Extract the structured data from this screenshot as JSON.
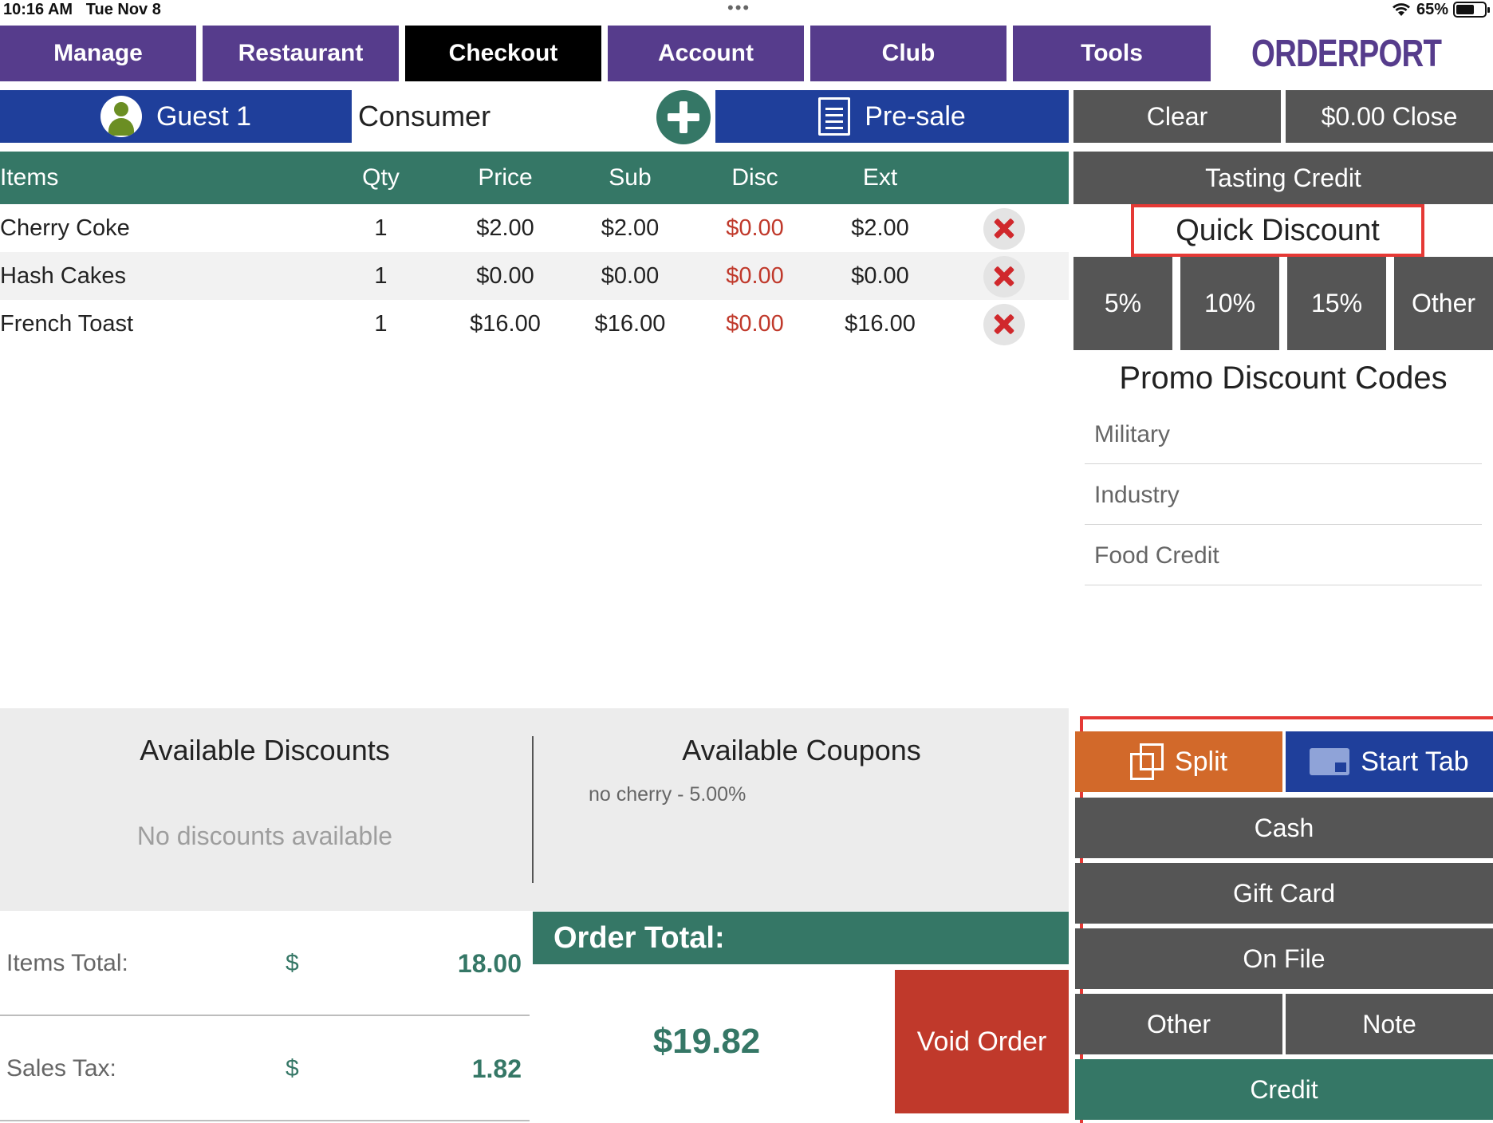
{
  "status_bar": {
    "time": "10:16 AM",
    "date": "Tue Nov 8",
    "dots": "•••",
    "battery": "65%",
    "battery_level": 0.65
  },
  "nav": {
    "tabs": [
      {
        "label": "Manage",
        "active": false
      },
      {
        "label": "Restaurant",
        "active": false
      },
      {
        "label": "Checkout",
        "active": true
      },
      {
        "label": "Account",
        "active": false
      },
      {
        "label": "Club",
        "active": false
      },
      {
        "label": "Tools",
        "active": false
      }
    ]
  },
  "brand": {
    "name": "ORDERPORT",
    "primary_color": "#563c8c",
    "accent_color": "#6b8e23"
  },
  "customer": {
    "guest_label": "Guest 1",
    "type": "Consumer",
    "presale_label": "Pre-sale"
  },
  "actions": {
    "clear": "Clear",
    "close": "$0.00 Close",
    "tasting_credit": "Tasting Credit"
  },
  "table": {
    "columns": [
      "Items",
      "Qty",
      "Price",
      "Sub",
      "Disc",
      "Ext"
    ],
    "rows": [
      {
        "item": "Cherry Coke",
        "qty": "1",
        "price": "$2.00",
        "sub": "$2.00",
        "disc": "$0.00",
        "ext": "$2.00"
      },
      {
        "item": "Hash Cakes",
        "qty": "1",
        "price": "$0.00",
        "sub": "$0.00",
        "disc": "$0.00",
        "ext": "$0.00"
      },
      {
        "item": "French Toast",
        "qty": "1",
        "price": "$16.00",
        "sub": "$16.00",
        "disc": "$0.00",
        "ext": "$16.00"
      }
    ]
  },
  "quick_discount": {
    "title": "Quick Discount",
    "options": [
      "5%",
      "10%",
      "15%",
      "Other"
    ]
  },
  "promo": {
    "title": "Promo Discount Codes",
    "codes": [
      "Military",
      "Industry",
      "Food Credit"
    ]
  },
  "available_discounts": {
    "title": "Available Discounts",
    "empty_text": "No discounts available"
  },
  "available_coupons": {
    "title": "Available Coupons",
    "items": [
      "no cherry - 5.00%"
    ]
  },
  "totals": {
    "items_label": "Items Total:",
    "items_currency": "$",
    "items_value": "18.00",
    "tax_label": "Sales Tax:",
    "tax_currency": "$",
    "tax_value": "1.82"
  },
  "order_total": {
    "label": "Order Total:",
    "value": "$19.82",
    "void_label": "Void Order"
  },
  "payment": {
    "split": "Split",
    "start_tab": "Start Tab",
    "cash": "Cash",
    "gift_card": "Gift Card",
    "on_file": "On File",
    "other": "Other",
    "note": "Note",
    "credit": "Credit"
  }
}
